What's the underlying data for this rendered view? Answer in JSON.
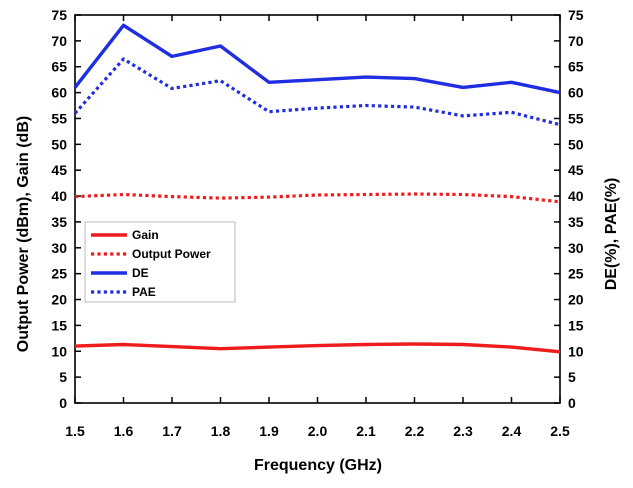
{
  "chart_data": {
    "type": "line",
    "title": "",
    "xlabel": "Frequency (GHz)",
    "ylabel_left": "Output Power (dBm), Gain (dB)",
    "ylabel_right": "DE(%), PAE(%)",
    "xlim": [
      1.5,
      2.5
    ],
    "ylim_left": [
      0,
      75
    ],
    "ylim_right": [
      0,
      75
    ],
    "x": [
      1.5,
      1.6,
      1.7,
      1.8,
      1.9,
      2.0,
      2.1,
      2.2,
      2.3,
      2.4,
      2.5
    ],
    "x_ticks": [
      "1.5",
      "1.6",
      "1.7",
      "1.8",
      "1.9",
      "2.0",
      "2.1",
      "2.2",
      "2.3",
      "2.4",
      "2.5"
    ],
    "y_ticks": [
      "0",
      "5",
      "10",
      "15",
      "20",
      "25",
      "30",
      "35",
      "40",
      "45",
      "50",
      "55",
      "60",
      "65",
      "70",
      "75"
    ],
    "grid": false,
    "legend_position": "middle-left",
    "series": [
      {
        "name": "Gain",
        "axis": "left",
        "color": "#ee1c1c",
        "style": "solid",
        "values": [
          11.0,
          11.3,
          10.9,
          10.5,
          10.8,
          11.1,
          11.3,
          11.4,
          11.3,
          10.8,
          9.9
        ]
      },
      {
        "name": "Output Power",
        "axis": "left",
        "color": "#ee1c1c",
        "style": "dotted",
        "values": [
          39.9,
          40.3,
          39.9,
          39.6,
          39.8,
          40.2,
          40.3,
          40.4,
          40.3,
          39.9,
          38.9
        ]
      },
      {
        "name": "DE",
        "axis": "right",
        "color": "#1f2ee0",
        "style": "solid",
        "values": [
          61.0,
          73.0,
          67.0,
          69.0,
          62.0,
          62.5,
          63.0,
          62.7,
          61.0,
          62.0,
          60.0
        ]
      },
      {
        "name": "PAE",
        "axis": "right",
        "color": "#1f2ee0",
        "style": "dotted",
        "values": [
          56.0,
          66.5,
          60.8,
          62.3,
          56.3,
          57.0,
          57.5,
          57.2,
          55.5,
          56.2,
          53.8
        ]
      }
    ]
  }
}
